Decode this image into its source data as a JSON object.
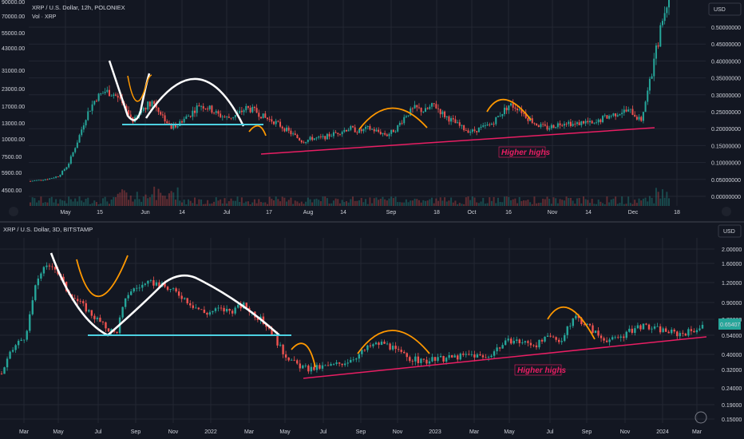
{
  "colors": {
    "up": "#26a69a",
    "down": "#ef5350",
    "bg": "#131722",
    "grid": "#232733",
    "pink": "#e91e63",
    "white": "#ffffff",
    "orange": "#ff9800",
    "cyan": "#4dd0e1",
    "text": "#d1d4dc"
  },
  "chart_data": [
    {
      "type": "candlestick",
      "title": "XRP / U.S. Dollar, 12h, POLONIEX",
      "currency": "USD",
      "left_axis_label": "Vol · XRP",
      "left_ticks": [
        "90000.00",
        "70000.00",
        "55000.00",
        "43000.00",
        "31000.00",
        "23000.00",
        "17000.00",
        "13000.00",
        "10000.00",
        "7500.00",
        "5900.00",
        "4500.00"
      ],
      "right_ticks": [
        "0.50000000",
        "0.45000000",
        "0.40000000",
        "0.35000000",
        "0.30000000",
        "0.25000000",
        "0.20000000",
        "0.15000000",
        "0.10000000",
        "0.05000000",
        "0.00000000"
      ],
      "x_ticks": [
        "May",
        "15",
        "Jun",
        "14",
        "Jul",
        "17",
        "Aug",
        "14",
        "Sep",
        "18",
        "Oct",
        "16",
        "Nov",
        "14",
        "Dec",
        "18"
      ],
      "annotation": "Higher highs",
      "close": [
        0.043,
        0.046,
        0.05,
        0.058,
        0.09,
        0.16,
        0.24,
        0.29,
        0.31,
        0.3,
        0.26,
        0.22,
        0.26,
        0.28,
        0.24,
        0.2,
        0.22,
        0.24,
        0.27,
        0.26,
        0.24,
        0.23,
        0.24,
        0.26,
        0.25,
        0.23,
        0.22,
        0.2,
        0.18,
        0.16,
        0.17,
        0.17,
        0.18,
        0.19,
        0.2,
        0.19,
        0.2,
        0.19,
        0.18,
        0.2,
        0.24,
        0.26,
        0.25,
        0.27,
        0.24,
        0.22,
        0.2,
        0.19,
        0.2,
        0.21,
        0.24,
        0.27,
        0.26,
        0.23,
        0.21,
        0.2,
        0.21,
        0.22,
        0.21,
        0.22,
        0.21,
        0.23,
        0.24,
        0.25,
        0.25,
        0.22,
        0.34,
        0.48,
        0.6
      ]
    },
    {
      "type": "candlestick",
      "title": "XRP / U.S. Dollar, 3D, BITSTAMP",
      "currency": "USD",
      "right_ticks": [
        "2.00000",
        "1.60000",
        "1.20000",
        "0.90000",
        "0.70000",
        "0.54000",
        "0.40000",
        "0.32000",
        "0.24000",
        "0.19000",
        "0.15000"
      ],
      "price_label": "0.65407",
      "x_ticks": [
        "Mar",
        "May",
        "Jul",
        "Sep",
        "Nov",
        "2022",
        "Mar",
        "May",
        "Jul",
        "Sep",
        "Nov",
        "2023",
        "Mar",
        "May",
        "Jul",
        "Sep",
        "Nov",
        "2024",
        "Mar"
      ],
      "annotation": "Higher highs",
      "close": [
        0.3,
        0.45,
        0.55,
        1.4,
        1.6,
        1.1,
        0.9,
        0.75,
        0.62,
        0.55,
        1.05,
        1.15,
        1.2,
        1.1,
        1.0,
        0.85,
        0.75,
        0.8,
        0.78,
        0.85,
        0.72,
        0.6,
        0.42,
        0.35,
        0.32,
        0.33,
        0.34,
        0.36,
        0.4,
        0.46,
        0.48,
        0.42,
        0.38,
        0.36,
        0.37,
        0.38,
        0.39,
        0.4,
        0.38,
        0.45,
        0.5,
        0.48,
        0.47,
        0.52,
        0.5,
        0.72,
        0.62,
        0.52,
        0.5,
        0.55,
        0.62,
        0.6,
        0.58,
        0.55,
        0.57,
        0.62
      ]
    }
  ]
}
